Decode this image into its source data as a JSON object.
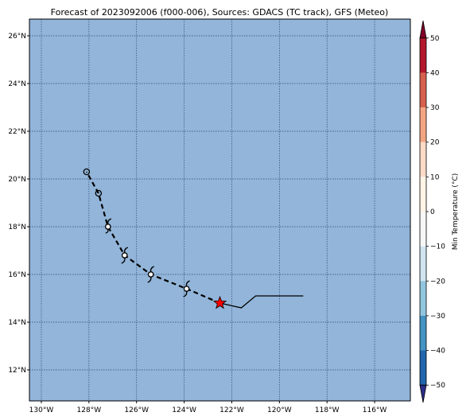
{
  "title": "Forecast of 2023092006 (f000-006), Sources: GDACS (TC track), GFS (Meteo)",
  "map": {
    "lon_range": [
      -130.5,
      -114.5
    ],
    "lat_range": [
      10.7,
      26.7
    ],
    "ocean_color": "#92b5d9",
    "grid_color": "#2f4a78",
    "lon_ticks": [
      {
        "value": -130,
        "label": "130°W"
      },
      {
        "value": -128,
        "label": "128°W"
      },
      {
        "value": -126,
        "label": "126°W"
      },
      {
        "value": -124,
        "label": "124°W"
      },
      {
        "value": -122,
        "label": "122°W"
      },
      {
        "value": -120,
        "label": "120°W"
      },
      {
        "value": -118,
        "label": "118°W"
      },
      {
        "value": -116,
        "label": "116°W"
      }
    ],
    "lat_ticks": [
      {
        "value": 12,
        "label": "12°N"
      },
      {
        "value": 14,
        "label": "14°N"
      },
      {
        "value": 16,
        "label": "16°N"
      },
      {
        "value": 18,
        "label": "18°N"
      },
      {
        "value": 20,
        "label": "20°N"
      },
      {
        "value": 22,
        "label": "22°N"
      },
      {
        "value": 24,
        "label": "24°N"
      },
      {
        "value": 26,
        "label": "26°N"
      }
    ]
  },
  "track": {
    "past": [
      [
        -119.0,
        15.1
      ],
      [
        -121.0,
        15.1
      ],
      [
        -121.6,
        14.6
      ],
      [
        -122.5,
        14.8
      ]
    ],
    "current": [
      -122.5,
      14.8
    ],
    "current_color": "#ff0000",
    "forecast": [
      {
        "lon": -123.9,
        "lat": 15.4,
        "symbol": "hurricane"
      },
      {
        "lon": -125.4,
        "lat": 16.0,
        "symbol": "hurricane"
      },
      {
        "lon": -126.5,
        "lat": 16.8,
        "symbol": "hurricane"
      },
      {
        "lon": -127.2,
        "lat": 18.0,
        "symbol": "storm"
      },
      {
        "lon": -127.6,
        "lat": 19.4,
        "symbol": "circle"
      },
      {
        "lon": -128.1,
        "lat": 20.3,
        "symbol": "circle"
      }
    ]
  },
  "colorbar": {
    "label": "Min Temperature (°C)",
    "min": -55,
    "max": 55,
    "ticks": [
      {
        "value": 50,
        "label": "50"
      },
      {
        "value": 40,
        "label": "40"
      },
      {
        "value": 30,
        "label": "30"
      },
      {
        "value": 20,
        "label": "20"
      },
      {
        "value": 10,
        "label": "10"
      },
      {
        "value": 0,
        "label": "0"
      },
      {
        "value": -10,
        "label": "−10"
      },
      {
        "value": -20,
        "label": "−20"
      },
      {
        "value": -30,
        "label": "−30"
      },
      {
        "value": -40,
        "label": "−40"
      },
      {
        "value": -50,
        "label": "−50"
      }
    ],
    "bands": [
      {
        "from": 50,
        "to": 55,
        "color": "#800026"
      },
      {
        "from": 40,
        "to": 50,
        "color": "#b2182b"
      },
      {
        "from": 30,
        "to": 40,
        "color": "#d6604d"
      },
      {
        "from": 20,
        "to": 30,
        "color": "#f4a582"
      },
      {
        "from": 10,
        "to": 20,
        "color": "#fddbc7"
      },
      {
        "from": 0,
        "to": 10,
        "color": "#fff4e6"
      },
      {
        "from": -10,
        "to": 0,
        "color": "#f7f7f7"
      },
      {
        "from": -20,
        "to": -10,
        "color": "#d1e5f0"
      },
      {
        "from": -30,
        "to": -20,
        "color": "#92c5de"
      },
      {
        "from": -40,
        "to": -30,
        "color": "#4393c3"
      },
      {
        "from": -50,
        "to": -40,
        "color": "#2166ac"
      },
      {
        "from": -55,
        "to": -50,
        "color": "#2d2d8a"
      }
    ]
  }
}
